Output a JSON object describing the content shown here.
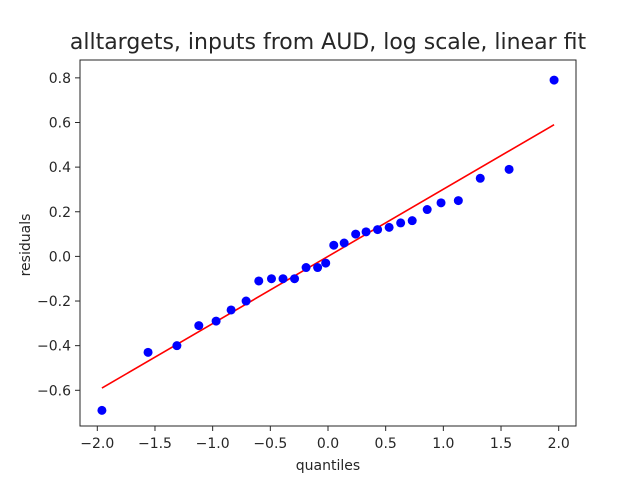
{
  "chart_data": {
    "type": "scatter",
    "title": "alltargets, inputs from AUD, log scale, linear fit",
    "xlabel": "quantiles",
    "ylabel": "residuals",
    "xlim": [
      -2.15,
      2.15
    ],
    "ylim": [
      -0.76,
      0.88
    ],
    "xticks": [
      -2.0,
      -1.5,
      -1.0,
      -0.5,
      0.0,
      0.5,
      1.0,
      1.5,
      2.0
    ],
    "xtick_labels": [
      "−2.0",
      "−1.5",
      "−1.0",
      "−0.5",
      "0.0",
      "0.5",
      "1.0",
      "1.5",
      "2.0"
    ],
    "yticks": [
      -0.6,
      -0.4,
      -0.2,
      0.0,
      0.2,
      0.4,
      0.6,
      0.8
    ],
    "ytick_labels": [
      "−0.6",
      "−0.4",
      "−0.2",
      "0.0",
      "0.2",
      "0.4",
      "0.6",
      "0.8"
    ],
    "grid": false,
    "point_color": "#0000ff",
    "line_color": "#ff0000",
    "points": [
      {
        "x": -1.96,
        "y": -0.69
      },
      {
        "x": -1.56,
        "y": -0.43
      },
      {
        "x": -1.31,
        "y": -0.4
      },
      {
        "x": -1.12,
        "y": -0.31
      },
      {
        "x": -0.97,
        "y": -0.29
      },
      {
        "x": -0.84,
        "y": -0.24
      },
      {
        "x": -0.71,
        "y": -0.2
      },
      {
        "x": -0.6,
        "y": -0.11
      },
      {
        "x": -0.49,
        "y": -0.1
      },
      {
        "x": -0.39,
        "y": -0.1
      },
      {
        "x": -0.29,
        "y": -0.1
      },
      {
        "x": -0.19,
        "y": -0.05
      },
      {
        "x": -0.09,
        "y": -0.05
      },
      {
        "x": -0.02,
        "y": -0.03
      },
      {
        "x": 0.05,
        "y": 0.05
      },
      {
        "x": 0.14,
        "y": 0.06
      },
      {
        "x": 0.24,
        "y": 0.1
      },
      {
        "x": 0.33,
        "y": 0.11
      },
      {
        "x": 0.43,
        "y": 0.12
      },
      {
        "x": 0.53,
        "y": 0.13
      },
      {
        "x": 0.63,
        "y": 0.15
      },
      {
        "x": 0.73,
        "y": 0.16
      },
      {
        "x": 0.86,
        "y": 0.21
      },
      {
        "x": 0.98,
        "y": 0.24
      },
      {
        "x": 1.13,
        "y": 0.25
      },
      {
        "x": 1.32,
        "y": 0.35
      },
      {
        "x": 1.57,
        "y": 0.39
      },
      {
        "x": 1.96,
        "y": 0.79
      }
    ],
    "fit_line": {
      "x": [
        -1.96,
        1.96
      ],
      "y": [
        -0.59,
        0.59
      ]
    }
  }
}
